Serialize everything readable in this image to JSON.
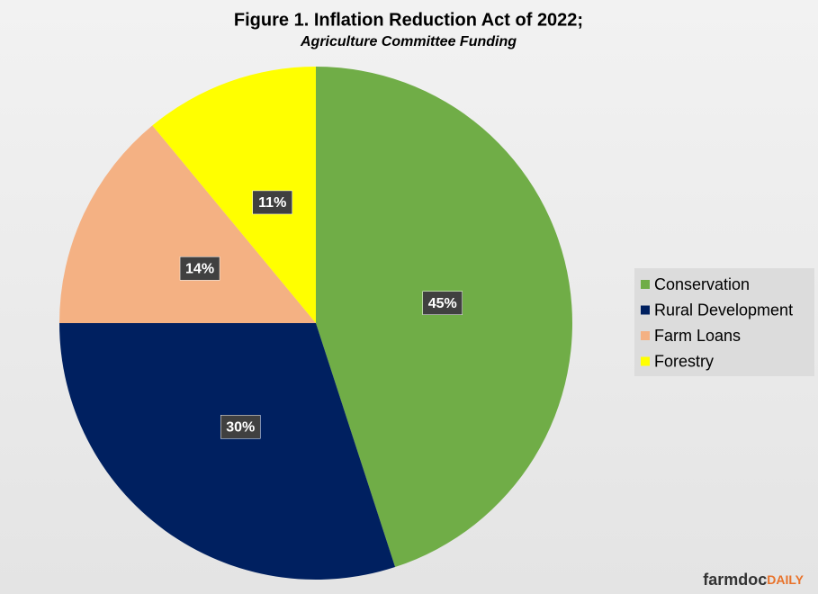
{
  "chart_data": {
    "type": "pie",
    "title": "Figure  1. Inflation  Reduction  Act  of 2022;",
    "subtitle": "Agriculture Committee Funding",
    "categories": [
      "Conservation",
      "Rural Development",
      "Farm Loans",
      "Forestry"
    ],
    "values": [
      45,
      30,
      14,
      11
    ],
    "value_labels": [
      "45%",
      "30%",
      "14%",
      "11%"
    ],
    "colors": [
      "#70ad47",
      "#002060",
      "#f4b183",
      "#ffff00"
    ],
    "legend": "right",
    "logo": {
      "main": "farmdoc",
      "accent": "DAILY"
    }
  }
}
